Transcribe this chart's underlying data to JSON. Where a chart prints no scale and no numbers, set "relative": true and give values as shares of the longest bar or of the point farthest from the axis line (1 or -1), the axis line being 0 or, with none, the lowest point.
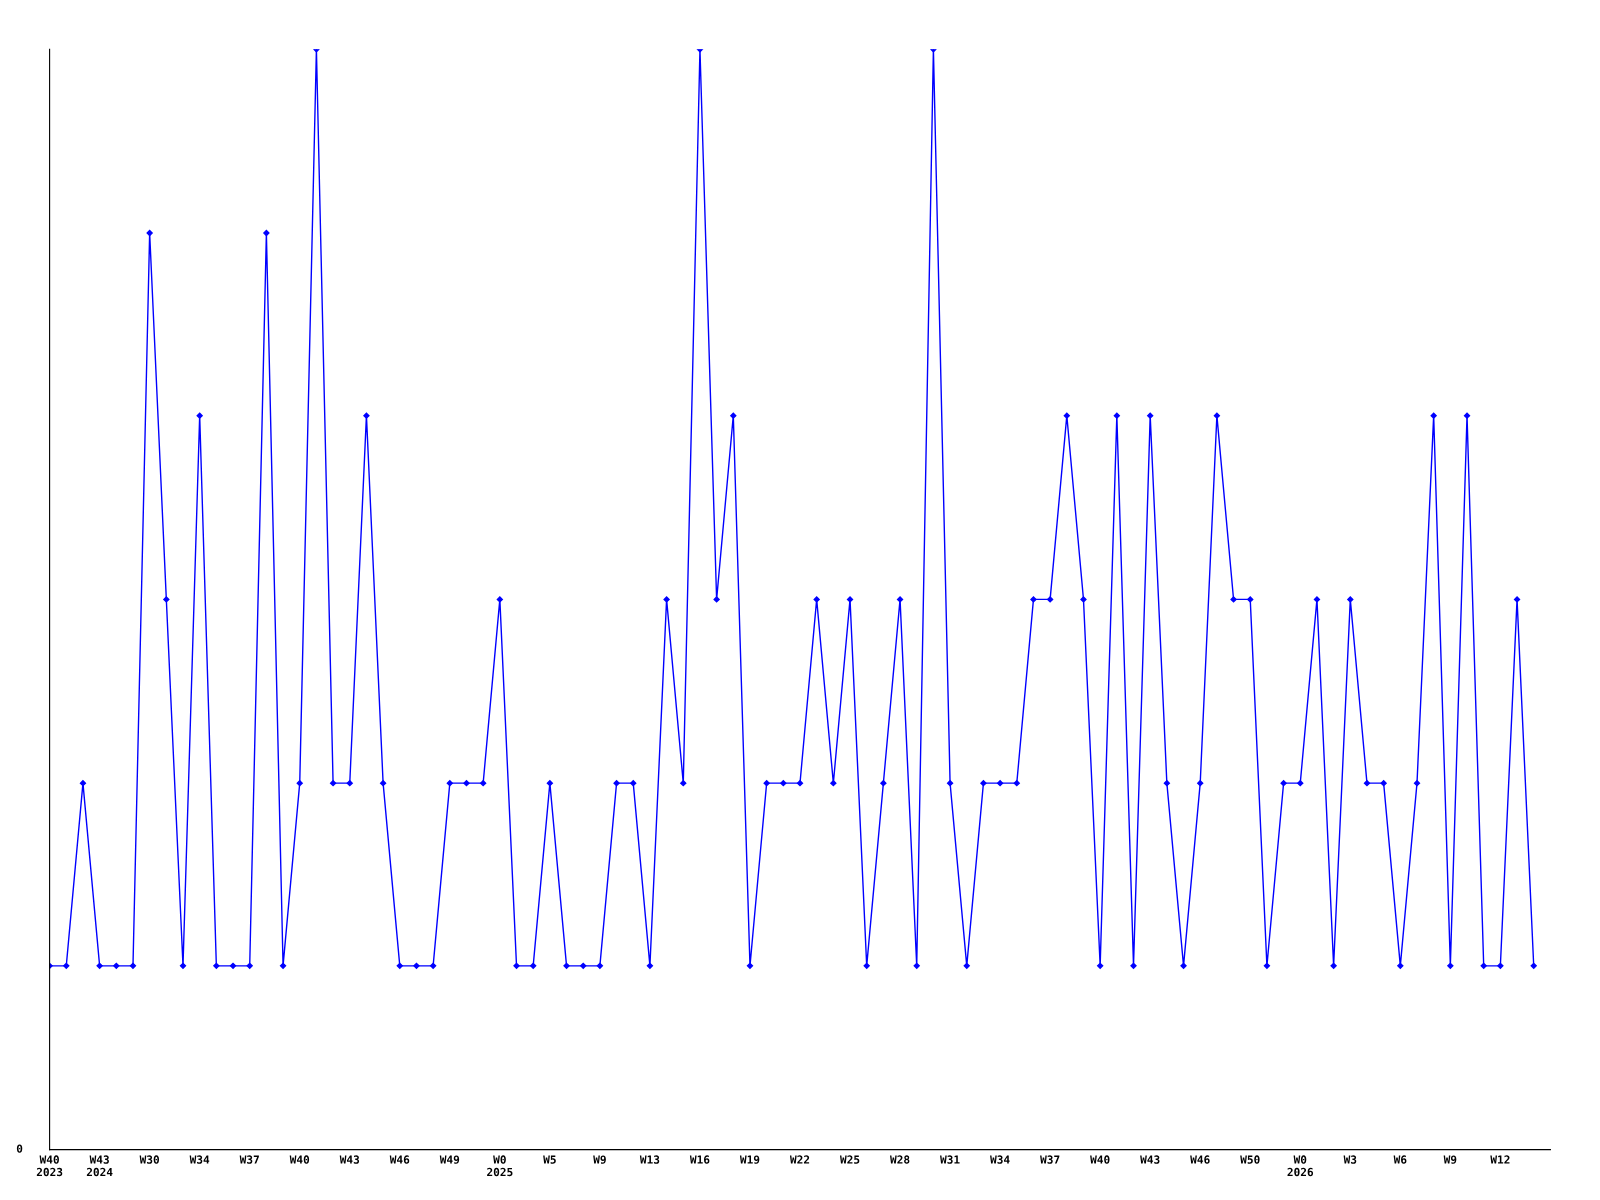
{
  "chart_data": {
    "type": "line",
    "relative": true,
    "color": "#0000ff",
    "marker": "diamond",
    "line_style": "solid",
    "grid": false,
    "legend": false,
    "categories": [
      "W40\n2023",
      null,
      null,
      "W43\n2024",
      null,
      null,
      "W30",
      null,
      null,
      "W34",
      null,
      null,
      "W37",
      null,
      null,
      "W40",
      null,
      null,
      "W43",
      null,
      null,
      "W46",
      null,
      null,
      "W49",
      null,
      null,
      "W0\n2025",
      null,
      null,
      "W5",
      null,
      null,
      "W9",
      null,
      null,
      "W13",
      null,
      null,
      "W16",
      null,
      null,
      "W19",
      null,
      null,
      "W22",
      null,
      null,
      "W25",
      null,
      null,
      "W28",
      null,
      null,
      "W31",
      null,
      null,
      "W34",
      null,
      null,
      "W37",
      null,
      null,
      "W40",
      null,
      null,
      "W43",
      null,
      null,
      "W46",
      null,
      null,
      "W50",
      null,
      null,
      "W0\n2026",
      null,
      null,
      "W3",
      null,
      null,
      "W6",
      null,
      null,
      "W9",
      null,
      null,
      "W12",
      null,
      null
    ],
    "values": [
      0.167,
      0.167,
      0.333,
      0.167,
      0.167,
      0.167,
      0.833,
      0.5,
      0.167,
      0.667,
      0.167,
      0.167,
      0.167,
      0.833,
      0.167,
      0.333,
      1,
      0.333,
      0.333,
      0.667,
      0.333,
      0.167,
      0.167,
      0.167,
      0.333,
      0.333,
      0.333,
      0.5,
      0.167,
      0.167,
      0.333,
      0.167,
      0.167,
      0.167,
      0.333,
      0.333,
      0.167,
      0.5,
      0.333,
      1,
      0.5,
      0.667,
      0.167,
      0.333,
      0.333,
      0.333,
      0.5,
      0.333,
      0.5,
      0.167,
      0.333,
      0.5,
      0.167,
      1,
      0.333,
      0.167,
      0.333,
      0.333,
      0.333,
      0.5,
      0.5,
      0.667,
      0.5,
      0.167,
      0.667,
      0.167,
      0.667,
      0.333,
      0.167,
      0.333,
      0.667,
      0.5,
      0.5,
      0.167,
      0.333,
      0.333,
      0.5,
      0.167,
      0.5,
      0.333,
      0.333,
      0.167,
      0.333,
      0.667,
      0.167,
      0.667,
      0.167,
      0.167,
      0.5,
      0.167
    ],
    "annotations": [
      "0"
    ]
  }
}
